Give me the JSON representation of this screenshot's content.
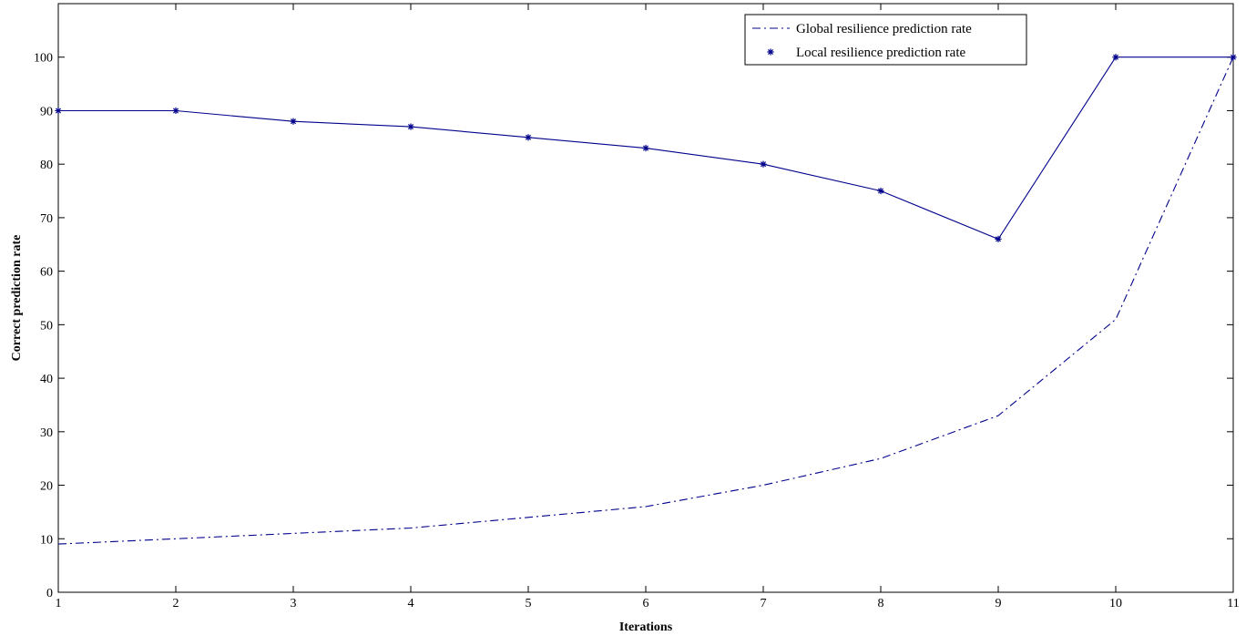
{
  "chart_data": {
    "type": "line",
    "x": [
      1,
      2,
      3,
      4,
      5,
      6,
      7,
      8,
      9,
      10,
      11
    ],
    "series": [
      {
        "name": "Global resilience prediction rate",
        "values": [
          9,
          10,
          11,
          12,
          14,
          16,
          20,
          25,
          33,
          51,
          100
        ],
        "color": "#00008b",
        "line_style": "dash-dot",
        "marker": "none"
      },
      {
        "name": "Local resilience prediction rate",
        "values": [
          90,
          90,
          88,
          87,
          85,
          83,
          80,
          75,
          66,
          100,
          100
        ],
        "color": "#00008b",
        "line_style": "solid",
        "marker": "asterisk"
      }
    ],
    "xlabel": "Iterations",
    "ylabel": "Correct prediction rate",
    "xlim": [
      1,
      11
    ],
    "ylim": [
      0,
      110
    ],
    "xticks": [
      1,
      2,
      3,
      4,
      5,
      6,
      7,
      8,
      9,
      10,
      11
    ],
    "yticks": [
      0,
      10,
      20,
      30,
      40,
      50,
      60,
      70,
      80,
      90,
      100
    ],
    "grid": false,
    "legend_position": "top-right"
  }
}
